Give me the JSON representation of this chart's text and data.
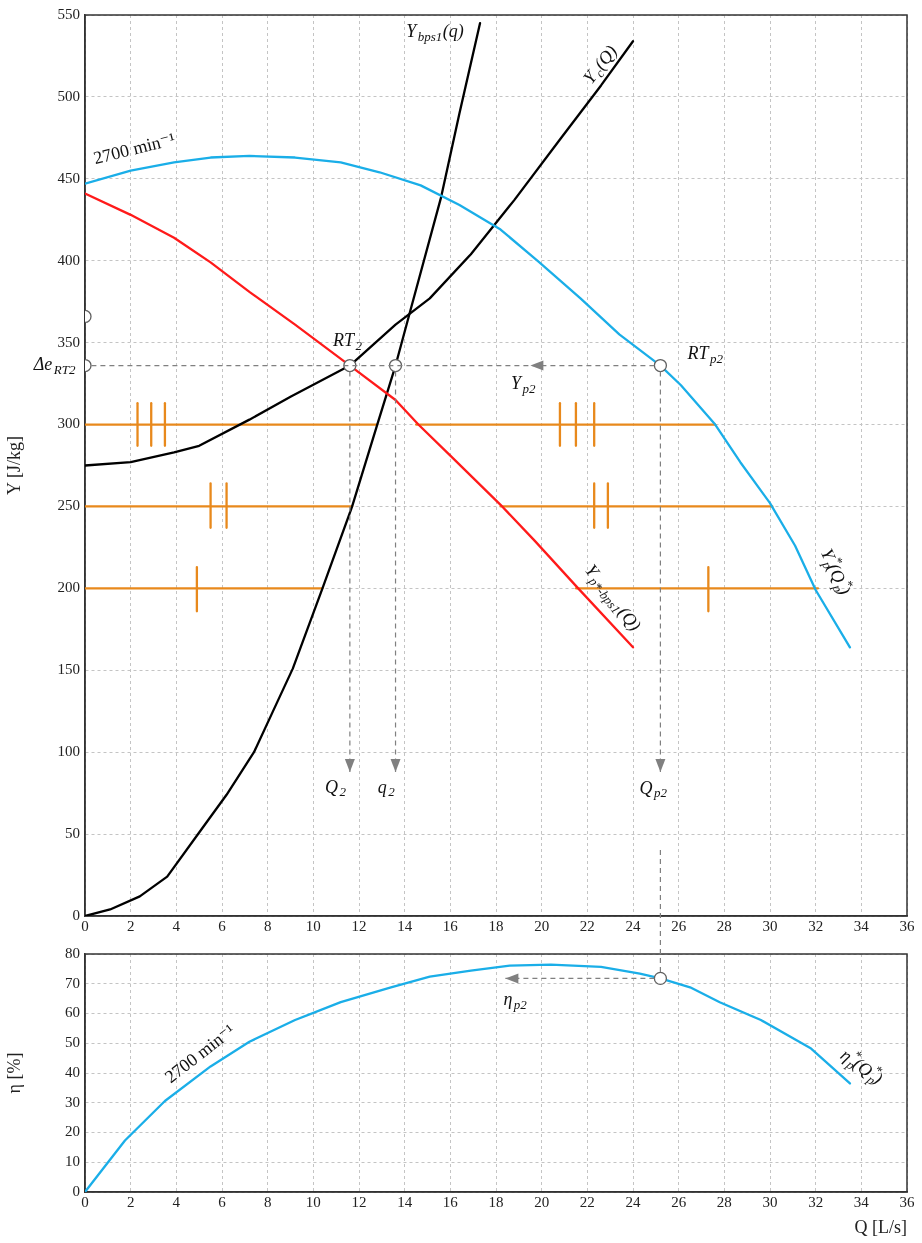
{
  "chart_data": [
    {
      "type": "line",
      "ylabel": "Y [J/kg]",
      "xlim": [
        0,
        36
      ],
      "ylim": [
        0,
        550
      ],
      "xticks": [
        0,
        2,
        4,
        6,
        8,
        10,
        12,
        14,
        16,
        18,
        20,
        22,
        24,
        26,
        28,
        30,
        32,
        34,
        36
      ],
      "yticks": [
        0,
        50,
        100,
        150,
        200,
        250,
        300,
        350,
        400,
        450,
        500,
        550
      ],
      "grid": true,
      "legend": false,
      "marker": "none",
      "line_style": "solid",
      "series": [
        {
          "color": "#1aaee8",
          "x": [
            0,
            2,
            3.9,
            5.5,
            7.2,
            9.2,
            11.2,
            12.9,
            14.7,
            16.4,
            18.2,
            19.9,
            21.7,
            23.4,
            25.2,
            26.1,
            27.6,
            28.7,
            30.0,
            31.1,
            32.0,
            33.5
          ],
          "values": [
            447,
            455,
            460,
            463,
            464,
            463,
            460,
            454,
            446,
            434,
            419,
            399,
            377,
            355,
            336,
            324,
            300,
            277,
            252,
            226,
            199,
            164
          ]
        },
        {
          "color": "#ff1a1a",
          "x": [
            0,
            2,
            3.9,
            5.5,
            7.2,
            9.2,
            11.6,
            13.6,
            14.6,
            16.0,
            18.2,
            19.7,
            21.6,
            24.0
          ],
          "values": [
            441,
            428,
            414,
            399,
            381,
            361,
            336,
            315,
            300,
            281,
            251,
            229,
            200,
            164
          ]
        },
        {
          "color": "#000000",
          "x": [
            0,
            1.1,
            2.4,
            3.6,
            5.0,
            6.2,
            7.4,
            8.2,
            9.1,
            10.4,
            11.7,
            12.8,
            13.6,
            14.2,
            15.6,
            16.4,
            17.3
          ],
          "values": [
            0,
            4,
            12,
            24,
            51,
            74,
            100,
            124,
            151,
            200,
            250,
            300,
            336,
            367,
            439,
            490,
            545
          ]
        },
        {
          "color": "#000000",
          "x": [
            0,
            2,
            3.9,
            5.0,
            7.2,
            9.0,
            11.6,
            13.6,
            15.1,
            16.9,
            18.8,
            20.8,
            22.6,
            24.0
          ],
          "values": [
            275,
            277,
            283,
            287,
            303,
            317,
            336,
            361,
            377,
            404,
            437,
            474,
            507,
            534
          ]
        },
        {
          "color": "#e8891c",
          "x": [
            0,
            12.8
          ],
          "values": [
            300,
            300
          ]
        },
        {
          "color": "#e8891c",
          "x": [
            14.5,
            27.6
          ],
          "values": [
            300,
            300
          ]
        },
        {
          "color": "#e8891c",
          "x": [
            0,
            11.7
          ],
          "values": [
            250,
            250
          ]
        },
        {
          "color": "#e8891c",
          "x": [
            18.2,
            30.1
          ],
          "values": [
            250,
            250
          ]
        },
        {
          "color": "#e8891c",
          "x": [
            0,
            10.4
          ],
          "values": [
            200,
            200
          ]
        },
        {
          "color": "#e8891c",
          "x": [
            21.5,
            32.1
          ],
          "values": [
            200,
            200
          ]
        },
        {
          "color": "#e8891c",
          "x": [
            2.3,
            2.3
          ],
          "values": [
            287,
            313
          ]
        },
        {
          "color": "#e8891c",
          "x": [
            2.9,
            2.9
          ],
          "values": [
            287,
            313
          ]
        },
        {
          "color": "#e8891c",
          "x": [
            3.5,
            3.5
          ],
          "values": [
            287,
            313
          ]
        },
        {
          "color": "#e8891c",
          "x": [
            20.8,
            20.8
          ],
          "values": [
            287,
            313
          ]
        },
        {
          "color": "#e8891c",
          "x": [
            21.5,
            21.5
          ],
          "values": [
            287,
            313
          ]
        },
        {
          "color": "#e8891c",
          "x": [
            22.3,
            22.3
          ],
          "values": [
            287,
            313
          ]
        },
        {
          "color": "#e8891c",
          "x": [
            5.5,
            5.5
          ],
          "values": [
            237,
            264
          ]
        },
        {
          "color": "#e8891c",
          "x": [
            6.2,
            6.2
          ],
          "values": [
            237,
            264
          ]
        },
        {
          "color": "#e8891c",
          "x": [
            22.3,
            22.3
          ],
          "values": [
            237,
            264
          ]
        },
        {
          "color": "#e8891c",
          "x": [
            22.9,
            22.9
          ],
          "values": [
            237,
            264
          ]
        },
        {
          "color": "#e8891c",
          "x": [
            4.9,
            4.9
          ],
          "values": [
            186,
            213
          ]
        },
        {
          "color": "#e8891c",
          "x": [
            27.3,
            27.3
          ],
          "values": [
            186,
            213
          ]
        },
        {
          "type": "scatter",
          "color": "#606060",
          "marker": "circle",
          "x": [
            0,
            0,
            11.6,
            13.6,
            25.2
          ],
          "values": [
            366,
            336,
            336,
            336,
            336
          ]
        }
      ],
      "annotations": [
        {
          "text": "Y$_{bps1}$(q)",
          "x": 17.3,
          "y": 545
        },
        {
          "text": "Y$_{c}$(Q)",
          "x": 24.0,
          "y": 534
        },
        {
          "text": "2700 min⁻¹",
          "x": 2,
          "y": 455
        },
        {
          "text": "RT$_{2}$",
          "x": 11.6,
          "y": 336
        },
        {
          "text": "RT$_{p2}$",
          "x": 25.2,
          "y": 336
        },
        {
          "text": "Δe$_{RT2}$",
          "x": 0,
          "y": 336
        },
        "Y$_{p2}$",
        {
          "text": "Y$_{p*-bps1}$(Q)",
          "x": 21.6,
          "y": 200
        },
        {
          "text": "Y$_{p}$$^{*}$(Q$_{p}$$^{*}$)",
          "x": 32.0,
          "y": 199
        },
        "Q$_{2}$",
        "q$_{2}$",
        "Q$_{p2}$"
      ]
    },
    {
      "type": "line",
      "xlabel": "Q [L/s]",
      "ylabel": "η [%]",
      "xlim": [
        0,
        36
      ],
      "ylim": [
        0,
        80
      ],
      "xticks": [
        0,
        2,
        4,
        6,
        8,
        10,
        12,
        14,
        16,
        18,
        20,
        22,
        24,
        26,
        28,
        30,
        32,
        34,
        36
      ],
      "yticks": [
        0,
        10,
        20,
        30,
        40,
        50,
        60,
        70,
        80
      ],
      "grid": true,
      "legend": false,
      "marker": "none",
      "line_style": "solid",
      "series": [
        {
          "color": "#1aaee8",
          "x": [
            0,
            1.75,
            3.5,
            5.5,
            7.2,
            9.2,
            11.2,
            13.4,
            15.1,
            16.9,
            18.6,
            20.4,
            22.6,
            24.3,
            25.2,
            26.5,
            27.8,
            29.6,
            31.8,
            33.5
          ],
          "values": [
            0,
            17.3,
            30.6,
            42.2,
            50.5,
            57.8,
            63.8,
            68.8,
            72.4,
            74.4,
            76.1,
            76.4,
            75.7,
            73.4,
            71.8,
            68.8,
            63.8,
            57.8,
            48.2,
            36.5
          ]
        },
        {
          "type": "scatter",
          "color": "#606060",
          "marker": "circle",
          "x": [
            25.2
          ],
          "values": [
            71.8
          ]
        }
      ],
      "annotations": [
        {
          "text": "2700 min⁻¹",
          "x": 5.5,
          "y": 42.2
        },
        {
          "text": "η$_{p2}$",
          "x": 25.2,
          "y": 71.8
        },
        {
          "text": "η$_{p}$$^{*}$(Q$_{p}$$^{*}$)",
          "x": 33.5,
          "y": 36.5
        }
      ]
    }
  ]
}
